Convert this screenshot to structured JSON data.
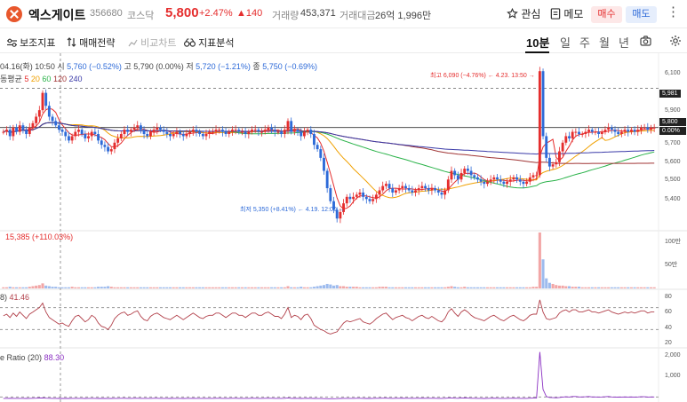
{
  "header": {
    "name": "엑스게이트",
    "code": "356680",
    "market": "코스닥",
    "price": "5,800",
    "change_pct": "+2.47%",
    "change_amt": "▲140",
    "volume_label": "거래량",
    "volume_value": "453,371",
    "amount_label": "거래대금",
    "amount_value": "26억 1,996만",
    "watch_label": "관심",
    "memo_label": "메모",
    "buy_label": "매수",
    "sell_label": "매도",
    "more_icon": "⋮"
  },
  "toolbar": {
    "indicators_label": "보조지표",
    "strategy_label": "매매전략",
    "compare_label": "비교차트",
    "analysis_label": "지표분석",
    "periods": [
      "10분",
      "일",
      "주",
      "월",
      "년"
    ],
    "active_period": "10분"
  },
  "price_pane": {
    "ohlc_date": "04.16(화) 10:50",
    "open_label": "시",
    "open_value": "5,760 (−0.52%)",
    "high_label": "고",
    "high_value": "5,790 (0.00%)",
    "low_label": "저",
    "low_value": "5,720 (−1.21%)",
    "close_label": "종",
    "close_value": "5,750 (−0.69%)",
    "ma_label": "동평균",
    "ma_periods": [
      "5",
      "20",
      "60",
      "120",
      "240"
    ],
    "axis_labels": [
      "6,100",
      "5,981",
      "5,900",
      "5,800",
      "0.00%",
      "5,700",
      "5,600",
      "5,500",
      "5,400"
    ],
    "high_annotation": "최고 6,090 (−4.76%) ← 4.23. 13:50 →",
    "low_annotation": "최저 5,350 (+8.41%) ← 4.19. 12:00 →"
  },
  "volume_pane": {
    "label": "15,385 (+110.03%)",
    "axis_labels": [
      "100만",
      "50만"
    ]
  },
  "rsi_pane": {
    "label_name": "8)",
    "label_value": "41.46",
    "axis_labels": [
      "80",
      "60",
      "40",
      "20"
    ]
  },
  "ratio_pane": {
    "label_name": "e Ratio",
    "label_period": "(20)",
    "label_value": "88.30",
    "axis_labels": [
      "2,000",
      "1,000"
    ]
  },
  "colors": {
    "up": "#e52e2e",
    "down": "#2d6ad8",
    "ma5": "#e52e2e",
    "ma20": "#f0a000",
    "ma60": "#2bb34a",
    "ma120": "#a03434",
    "ma240": "#3a3aa8",
    "rsi": "#b2404a",
    "ratio": "#8a2fc2"
  },
  "chart_data": {
    "type": "candlestick",
    "price_range": [
      5340,
      6110
    ],
    "closes": [
      5780,
      5790,
      5760,
      5800,
      5780,
      5810,
      5790,
      5770,
      5800,
      5820,
      5850,
      5880,
      5960,
      5900,
      5850,
      5830,
      5810,
      5790,
      5780,
      5760,
      5740,
      5760,
      5780,
      5790,
      5770,
      5750,
      5760,
      5780,
      5770,
      5740,
      5720,
      5710,
      5690,
      5700,
      5730,
      5750,
      5770,
      5790,
      5780,
      5790,
      5800,
      5810,
      5790,
      5770,
      5760,
      5780,
      5790,
      5800,
      5790,
      5780,
      5770,
      5760,
      5770,
      5780,
      5770,
      5760,
      5770,
      5780,
      5790,
      5780,
      5770,
      5760,
      5770,
      5780,
      5780,
      5790,
      5790,
      5780,
      5770,
      5780,
      5790,
      5790,
      5780,
      5780,
      5770,
      5780,
      5790,
      5790,
      5780,
      5780,
      5790,
      5800,
      5790,
      5780,
      5780,
      5770,
      5790,
      5830,
      5780,
      5790,
      5780,
      5760,
      5780,
      5790,
      5770,
      5720,
      5700,
      5660,
      5600,
      5520,
      5460,
      5420,
      5380,
      5410,
      5450,
      5480,
      5470,
      5480,
      5490,
      5500,
      5480,
      5470,
      5460,
      5470,
      5490,
      5510,
      5530,
      5540,
      5520,
      5500,
      5510,
      5520,
      5530,
      5520,
      5510,
      5500,
      5510,
      5520,
      5530,
      5520,
      5510,
      5520,
      5510,
      5500,
      5490,
      5510,
      5560,
      5600,
      5580,
      5560,
      5590,
      5610,
      5600,
      5580,
      5570,
      5560,
      5550,
      5540,
      5550,
      5560,
      5570,
      5560,
      5550,
      5540,
      5550,
      5560,
      5570,
      5560,
      5550,
      5540,
      5550,
      5570,
      5580,
      5580,
      6060,
      5760,
      5660,
      5620,
      5630,
      5640,
      5690,
      5730,
      5760,
      5750,
      5780,
      5780,
      5770,
      5770,
      5780,
      5790,
      5780,
      5780,
      5770,
      5780,
      5790,
      5800,
      5790,
      5780,
      5770,
      5780,
      5790,
      5780,
      5790,
      5780,
      5790,
      5800,
      5800,
      5790,
      5800,
      5800
    ],
    "volume": [
      2,
      2,
      3,
      2,
      2,
      2,
      2,
      2,
      3,
      4,
      5,
      6,
      9,
      5,
      4,
      3,
      3,
      2,
      2,
      2,
      2,
      3,
      2,
      2,
      2,
      2,
      2,
      2,
      2,
      3,
      3,
      3,
      4,
      3,
      2,
      2,
      2,
      2,
      2,
      2,
      2,
      2,
      2,
      2,
      2,
      2,
      2,
      2,
      2,
      2,
      2,
      2,
      2,
      2,
      2,
      2,
      2,
      2,
      2,
      2,
      2,
      2,
      2,
      2,
      2,
      2,
      2,
      2,
      2,
      2,
      2,
      2,
      2,
      2,
      2,
      2,
      2,
      2,
      2,
      2,
      2,
      2,
      2,
      2,
      2,
      2,
      2,
      4,
      2,
      2,
      2,
      3,
      2,
      2,
      2,
      3,
      4,
      5,
      6,
      8,
      7,
      5,
      6,
      4,
      4,
      3,
      3,
      3,
      3,
      2,
      2,
      2,
      2,
      2,
      2,
      3,
      3,
      3,
      2,
      2,
      2,
      2,
      2,
      2,
      2,
      2,
      2,
      2,
      2,
      2,
      2,
      2,
      2,
      2,
      2,
      2,
      3,
      4,
      3,
      2,
      2,
      3,
      2,
      2,
      2,
      2,
      2,
      2,
      2,
      2,
      2,
      2,
      2,
      2,
      2,
      2,
      2,
      2,
      2,
      2,
      2,
      2,
      3,
      3,
      100,
      52,
      18,
      10,
      8,
      6,
      5,
      5,
      4,
      4,
      3,
      3,
      3,
      2,
      2,
      2,
      2,
      2,
      2,
      2,
      2,
      2,
      2,
      2,
      2,
      2,
      2,
      2,
      2,
      2,
      2,
      2,
      2,
      2,
      2,
      2
    ],
    "rsi": [
      55,
      58,
      52,
      60,
      54,
      62,
      56,
      50,
      58,
      62,
      66,
      70,
      78,
      62,
      52,
      48,
      44,
      40,
      42,
      38,
      36,
      46,
      54,
      56,
      50,
      44,
      48,
      56,
      52,
      42,
      36,
      34,
      30,
      38,
      50,
      56,
      60,
      62,
      56,
      58,
      62,
      64,
      54,
      48,
      46,
      54,
      58,
      60,
      56,
      52,
      50,
      48,
      52,
      56,
      52,
      48,
      52,
      56,
      60,
      56,
      52,
      50,
      54,
      56,
      56,
      60,
      60,
      56,
      52,
      56,
      60,
      60,
      56,
      56,
      52,
      56,
      60,
      60,
      56,
      56,
      60,
      62,
      58,
      54,
      54,
      50,
      58,
      70,
      52,
      56,
      54,
      48,
      56,
      58,
      50,
      38,
      34,
      30,
      28,
      24,
      22,
      24,
      26,
      34,
      42,
      46,
      44,
      46,
      48,
      50,
      44,
      42,
      40,
      44,
      50,
      54,
      58,
      60,
      54,
      48,
      52,
      54,
      56,
      52,
      50,
      46,
      50,
      54,
      56,
      52,
      50,
      54,
      50,
      46,
      44,
      50,
      62,
      68,
      60,
      54,
      62,
      66,
      62,
      56,
      52,
      50,
      48,
      46,
      50,
      54,
      56,
      52,
      48,
      46,
      50,
      54,
      56,
      52,
      48,
      46,
      50,
      56,
      58,
      58,
      84,
      62,
      50,
      48,
      50,
      52,
      60,
      64,
      66,
      62,
      66,
      66,
      62,
      62,
      64,
      66,
      62,
      62,
      60,
      62,
      64,
      66,
      62,
      60,
      58,
      60,
      62,
      60,
      62,
      60,
      62,
      64,
      64,
      60,
      62,
      62
    ],
    "ratio": [
      40,
      40,
      45,
      40,
      40,
      42,
      40,
      38,
      40,
      45,
      50,
      55,
      60,
      50,
      45,
      42,
      40,
      38,
      38,
      36,
      36,
      40,
      42,
      42,
      40,
      38,
      40,
      42,
      40,
      38,
      36,
      36,
      34,
      36,
      40,
      42,
      44,
      44,
      42,
      42,
      44,
      46,
      42,
      40,
      40,
      42,
      44,
      44,
      42,
      40,
      40,
      38,
      40,
      42,
      40,
      38,
      40,
      42,
      44,
      42,
      40,
      40,
      42,
      42,
      42,
      44,
      44,
      42,
      40,
      42,
      44,
      44,
      42,
      42,
      40,
      42,
      44,
      44,
      42,
      42,
      44,
      46,
      44,
      42,
      42,
      40,
      44,
      60,
      42,
      44,
      42,
      38,
      42,
      44,
      40,
      36,
      34,
      32,
      30,
      28,
      26,
      28,
      30,
      36,
      40,
      42,
      40,
      42,
      44,
      44,
      40,
      38,
      38,
      40,
      44,
      46,
      48,
      48,
      46,
      42,
      44,
      46,
      48,
      46,
      44,
      42,
      44,
      46,
      48,
      46,
      44,
      46,
      44,
      42,
      40,
      44,
      54,
      60,
      50,
      46,
      52,
      58,
      52,
      46,
      44,
      42,
      40,
      38,
      42,
      46,
      48,
      46,
      42,
      40,
      42,
      46,
      48,
      46,
      42,
      40,
      42,
      48,
      52,
      52,
      2000,
      420,
      120,
      80,
      70,
      64,
      80,
      96,
      110,
      96,
      120,
      120,
      100,
      100,
      110,
      120,
      100,
      100,
      96,
      100,
      110,
      120,
      100,
      96,
      92,
      96,
      100,
      96,
      100,
      96,
      100,
      110,
      110,
      96,
      100,
      100
    ]
  }
}
